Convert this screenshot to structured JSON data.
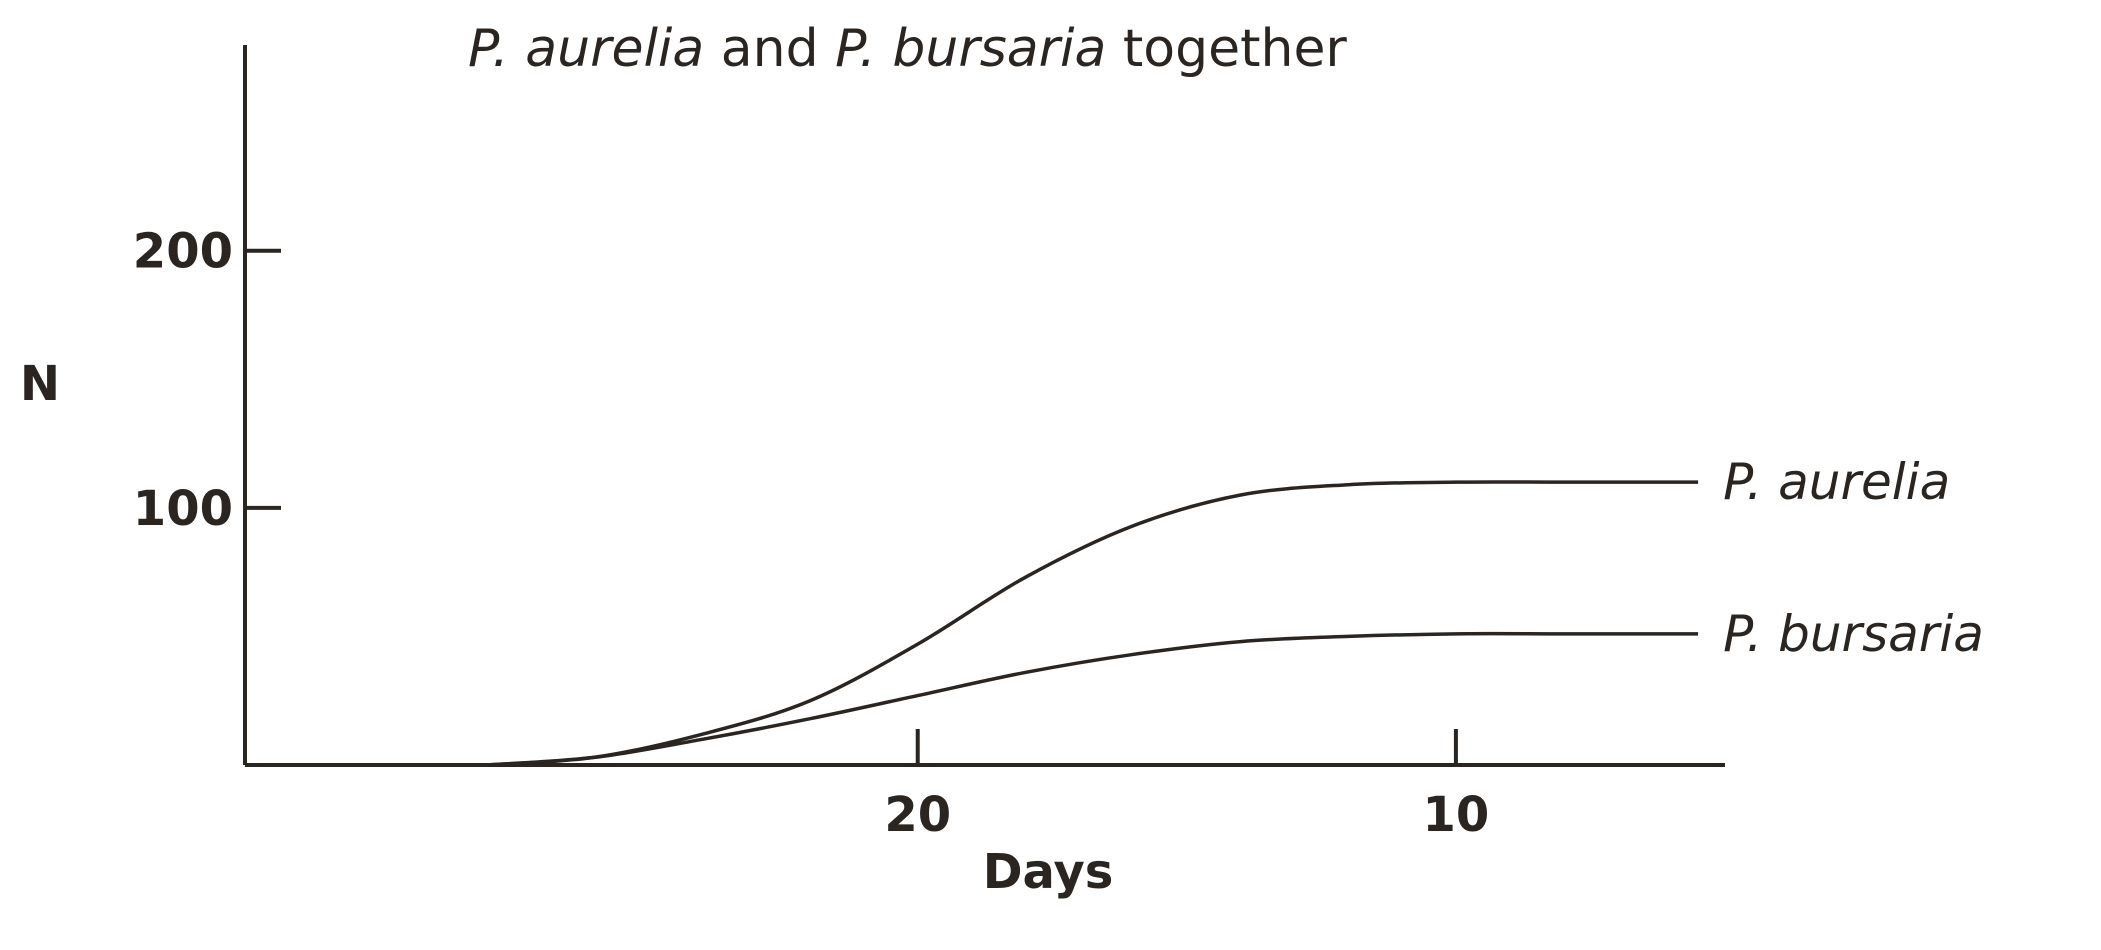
{
  "chart_data": {
    "type": "line",
    "title_parts": [
      {
        "text": "P. aurelia",
        "italic": true
      },
      {
        "text": " and ",
        "italic": false
      },
      {
        "text": "P. bursaria",
        "italic": true
      },
      {
        "text": " together",
        "italic": false
      }
    ],
    "xlabel": "Days",
    "ylabel": "N",
    "x_reversed": true,
    "xlim": [
      32.5,
      5
    ],
    "ylim": [
      0,
      280
    ],
    "x_ticks": [
      {
        "value": 20,
        "label": "20"
      },
      {
        "value": 10,
        "label": "10"
      }
    ],
    "y_ticks": [
      {
        "value": 100,
        "label": "100"
      },
      {
        "value": 200,
        "label": "200"
      }
    ],
    "series": [
      {
        "name": "P. aurelia",
        "x": [
          28,
          26,
          24,
          22,
          20,
          18,
          16,
          14,
          12,
          10,
          8,
          6,
          5.5
        ],
        "y": [
          0,
          3,
          12,
          25,
          47,
          73,
          93,
          105,
          109,
          110,
          110,
          110,
          110
        ]
      },
      {
        "name": "P. bursaria",
        "x": [
          28,
          26,
          24,
          22,
          20,
          18,
          16,
          14,
          12,
          10,
          8,
          6,
          5.5
        ],
        "y": [
          0,
          3,
          10,
          18,
          27,
          36,
          43,
          48,
          50,
          51,
          51,
          51,
          51
        ]
      }
    ],
    "grid": false,
    "legend": "inline at line ends"
  }
}
